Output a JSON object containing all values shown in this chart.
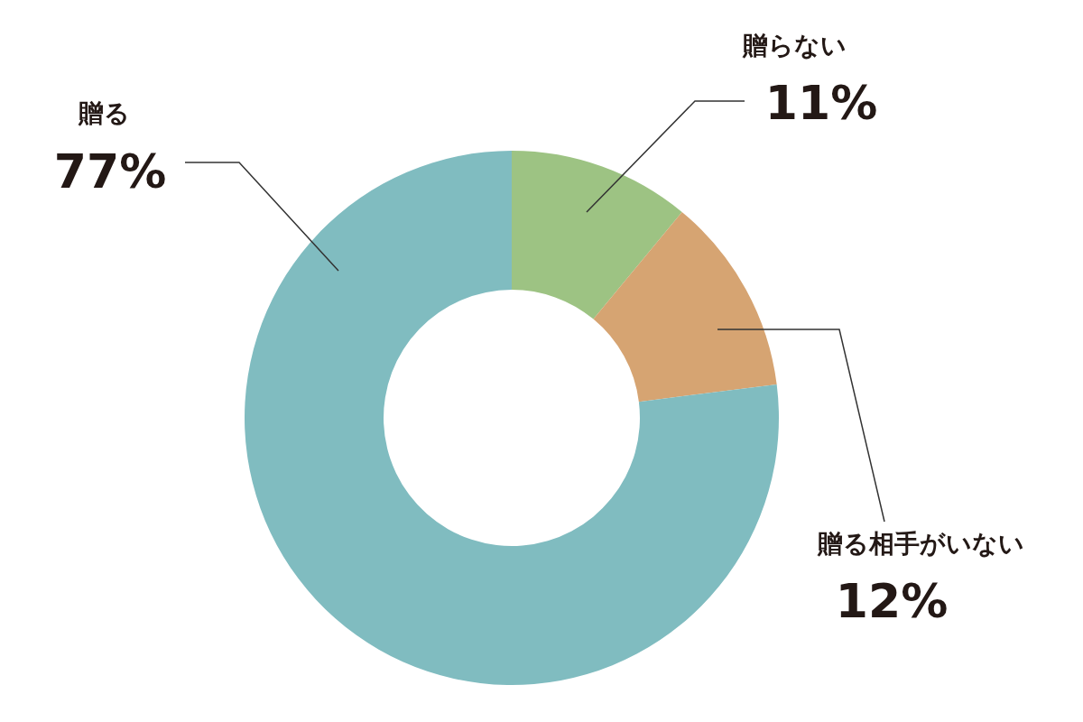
{
  "chart_data": {
    "type": "donut",
    "categories": [
      "贈らない",
      "贈る相手がいない",
      "贈る"
    ],
    "values": [
      11,
      12,
      77
    ],
    "colors": [
      "#9dc383",
      "#d6a472",
      "#80bcc0"
    ],
    "value_labels": [
      "11%",
      "12%",
      "77%"
    ]
  }
}
